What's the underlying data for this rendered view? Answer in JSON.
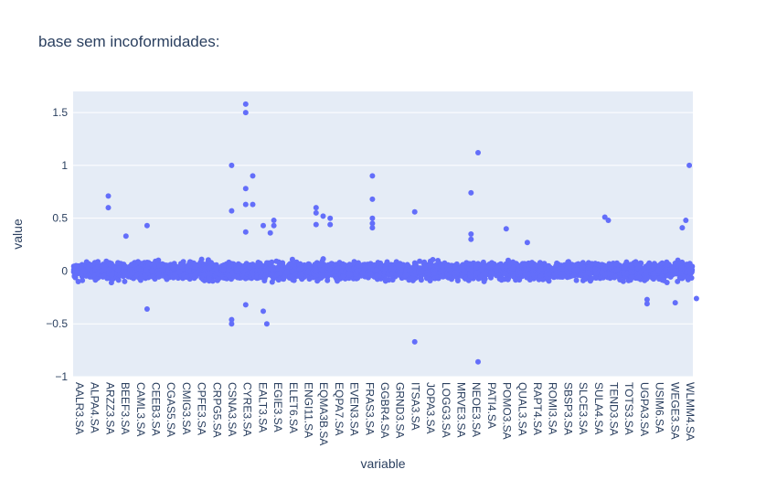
{
  "chart_data": {
    "type": "scatter",
    "title": "base sem incoformidades:",
    "xlabel": "variable",
    "ylabel": "value",
    "ylim": [
      -1.0,
      1.7
    ],
    "y_ticks": [
      -1,
      -0.5,
      0,
      0.5,
      1,
      1.5
    ],
    "y_tick_labels": [
      "−1",
      "−0.5",
      "0",
      "0.5",
      "1",
      "1.5"
    ],
    "grid": true,
    "legend": "none",
    "marker_color": "#636efa",
    "background_color": "#e5ecf6",
    "x_tick_labels": [
      "AALR3.SA",
      "ALPA4.SA",
      "ARZZ3.SA",
      "BEEF3.SA",
      "CAML3.SA",
      "CEEB3.SA",
      "CGAS5.SA",
      "CMIG3.SA",
      "CPFE3.SA",
      "CRPG5.SA",
      "CSNA3.SA",
      "CYRE3.SA",
      "EALT3.SA",
      "EGIE3.SA",
      "ELET6.SA",
      "ENGI11.SA",
      "EQMA3B.SA",
      "EQPA7.SA",
      "EVEN3.SA",
      "FRAS3.SA",
      "GGBR4.SA",
      "GRND3.SA",
      "ITSA3.SA",
      "JOPA3.SA",
      "LOGG3.SA",
      "MRVE3.SA",
      "NEOE3.SA",
      "PATI4.SA",
      "POMO3.SA",
      "QUAL3.SA",
      "RAPT4.SA",
      "ROMI3.SA",
      "SBSP3.SA",
      "SLCE3.SA",
      "SULA4.SA",
      "TEND3.SA",
      "TOTS3.SA",
      "UGPA3.SA",
      "USIM6.SA",
      "WEGE3.SA",
      "WLMM4.SA"
    ],
    "outliers": [
      {
        "x": 4.5,
        "y": 0.71
      },
      {
        "x": 4.5,
        "y": 0.6
      },
      {
        "x": 7.0,
        "y": 0.33
      },
      {
        "x": 10.0,
        "y": 0.43
      },
      {
        "x": 10.0,
        "y": -0.36
      },
      {
        "x": 22.0,
        "y": 1.0
      },
      {
        "x": 22.0,
        "y": 0.57
      },
      {
        "x": 22.0,
        "y": -0.46
      },
      {
        "x": 22.0,
        "y": -0.5
      },
      {
        "x": 24.0,
        "y": 1.58
      },
      {
        "x": 24.0,
        "y": 1.5
      },
      {
        "x": 24.0,
        "y": 0.78
      },
      {
        "x": 24.0,
        "y": 0.63
      },
      {
        "x": 24.0,
        "y": 0.37
      },
      {
        "x": 24.0,
        "y": -0.32
      },
      {
        "x": 25.0,
        "y": 0.9
      },
      {
        "x": 25.0,
        "y": 0.63
      },
      {
        "x": 26.5,
        "y": 0.43
      },
      {
        "x": 26.5,
        "y": -0.38
      },
      {
        "x": 27.0,
        "y": -0.5
      },
      {
        "x": 28.0,
        "y": 0.48
      },
      {
        "x": 28.0,
        "y": 0.43
      },
      {
        "x": 27.5,
        "y": 0.36
      },
      {
        "x": 34.0,
        "y": 0.6
      },
      {
        "x": 34.0,
        "y": 0.55
      },
      {
        "x": 34.0,
        "y": 0.44
      },
      {
        "x": 35.0,
        "y": 0.52
      },
      {
        "x": 36.0,
        "y": 0.5
      },
      {
        "x": 36.0,
        "y": 0.44
      },
      {
        "x": 42.0,
        "y": 0.9
      },
      {
        "x": 42.0,
        "y": 0.68
      },
      {
        "x": 42.0,
        "y": 0.5
      },
      {
        "x": 42.0,
        "y": 0.45
      },
      {
        "x": 42.0,
        "y": 0.41
      },
      {
        "x": 48.0,
        "y": 0.56
      },
      {
        "x": 48.0,
        "y": -0.67
      },
      {
        "x": 56.0,
        "y": 0.74
      },
      {
        "x": 57.0,
        "y": 1.12
      },
      {
        "x": 57.0,
        "y": -0.86
      },
      {
        "x": 56.0,
        "y": 0.35
      },
      {
        "x": 56.0,
        "y": 0.3
      },
      {
        "x": 61.0,
        "y": 0.4
      },
      {
        "x": 64.0,
        "y": 0.27
      },
      {
        "x": 75.0,
        "y": 0.51
      },
      {
        "x": 75.5,
        "y": 0.48
      },
      {
        "x": 81.0,
        "y": -0.31
      },
      {
        "x": 81.0,
        "y": -0.27
      },
      {
        "x": 87.0,
        "y": 1.0
      },
      {
        "x": 86.5,
        "y": 0.48
      },
      {
        "x": 86.0,
        "y": 0.41
      },
      {
        "x": 85.0,
        "y": -0.3
      },
      {
        "x": 88.0,
        "y": -0.26
      }
    ]
  }
}
